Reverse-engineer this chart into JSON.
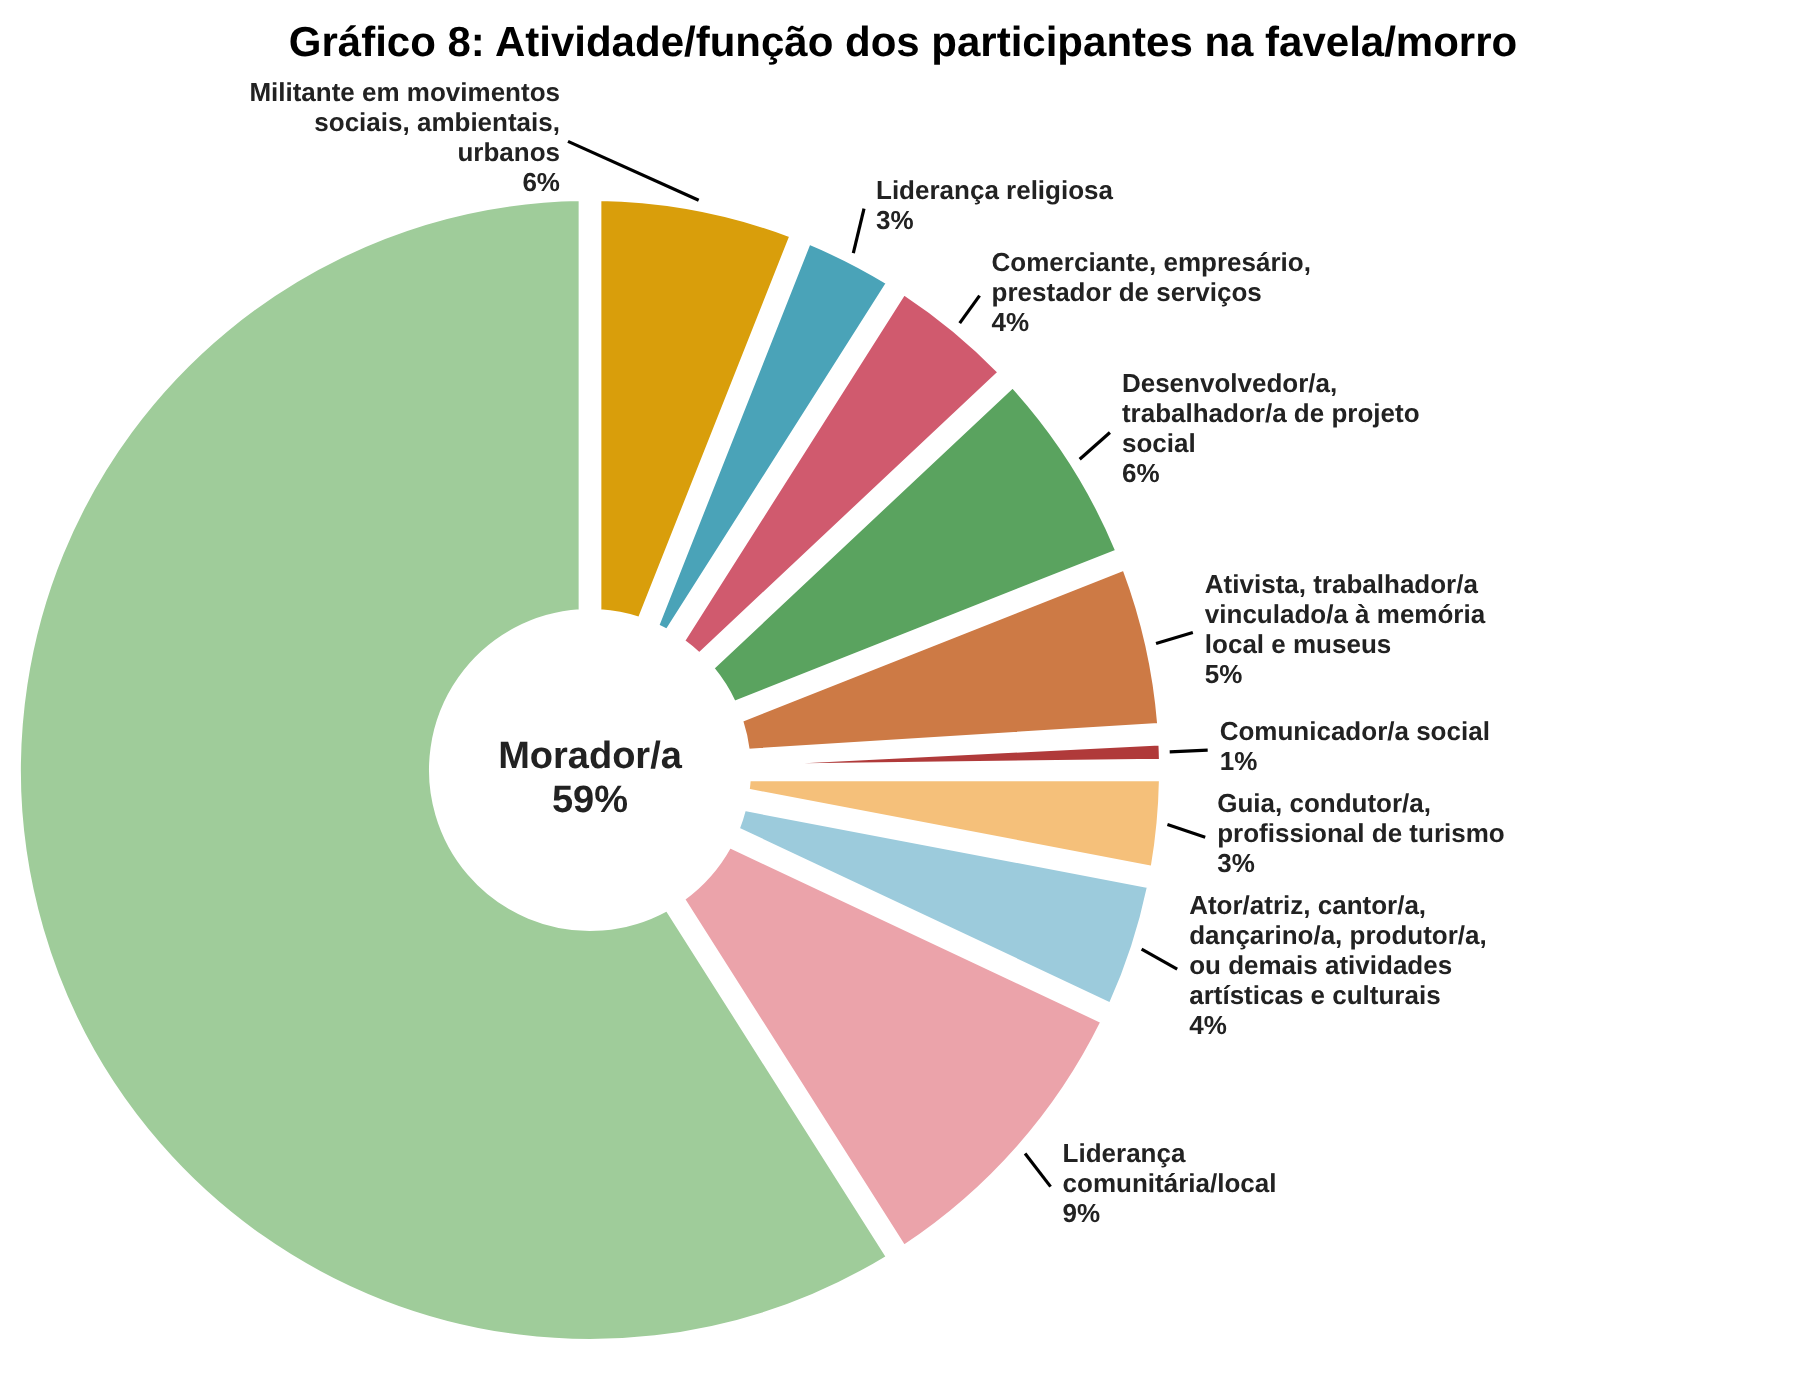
{
  "chart_data": {
    "type": "donut",
    "title": "Gráfico 8: Atividade/função dos participantes na favela/morro",
    "categories": [
      "Militante em movimentos sociais, ambientais, urbanos",
      "Liderança religiosa",
      "Comerciante, empresário, prestador de serviços",
      "Desenvolvedor/a, trabalhador/a de projeto social",
      "Ativista, trabalhador/a vinculado/a à memória local e museus",
      "Comunicador/a social",
      "Guia, condutor/a, profissional de turismo",
      "Ator/atriz, cantor/a, dançarino/a, produtor/a, ou demais atividades artísticas e culturais",
      "Liderança comunitária/local",
      "Morador/a"
    ],
    "values": [
      6,
      3,
      4,
      6,
      5,
      1,
      3,
      4,
      9,
      59
    ],
    "value_labels": [
      "6%",
      "3%",
      "4%",
      "6%",
      "5%",
      "1%",
      "3%",
      "4%",
      "9%",
      "59%"
    ],
    "colors": [
      "#d99e0b",
      "#4aa3b8",
      "#d05a6e",
      "#5aa35f",
      "#cd7a45",
      "#b03a3a",
      "#f5c07a",
      "#9ccbdc",
      "#eba3aa",
      "#9fcc9a"
    ]
  }
}
